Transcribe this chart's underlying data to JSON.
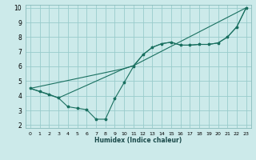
{
  "xlabel": "Humidex (Indice chaleur)",
  "bg_color": "#cceaea",
  "grid_color": "#99cccc",
  "line_color": "#1a7060",
  "xlim": [
    -0.5,
    23.5
  ],
  "ylim": [
    1.8,
    10.2
  ],
  "xticks": [
    0,
    1,
    2,
    3,
    4,
    5,
    6,
    7,
    8,
    9,
    10,
    11,
    12,
    13,
    14,
    15,
    16,
    17,
    18,
    19,
    20,
    21,
    22,
    23
  ],
  "yticks": [
    2,
    3,
    4,
    5,
    6,
    7,
    8,
    9,
    10
  ],
  "line1_x": [
    0,
    1,
    2,
    3,
    4,
    5,
    6,
    7,
    8,
    9,
    10,
    11,
    12,
    13,
    14,
    15,
    16,
    17,
    18,
    19,
    20,
    21,
    22,
    23
  ],
  "line1_y": [
    4.5,
    4.3,
    4.1,
    3.85,
    3.25,
    3.15,
    3.05,
    2.4,
    2.4,
    3.8,
    4.9,
    6.0,
    6.8,
    7.3,
    7.55,
    7.65,
    7.45,
    7.45,
    7.5,
    7.5,
    7.6,
    8.0,
    8.7,
    10.0
  ],
  "line2_x": [
    0,
    3,
    10,
    11,
    23
  ],
  "line2_y": [
    4.5,
    3.85,
    5.85,
    6.05,
    10.0
  ],
  "line3_x": [
    0,
    10,
    11,
    12,
    13,
    14,
    15,
    16,
    17,
    18,
    19,
    20,
    21,
    22,
    23
  ],
  "line3_y": [
    4.5,
    5.85,
    6.05,
    6.8,
    7.3,
    7.55,
    7.65,
    7.45,
    7.45,
    7.5,
    7.5,
    7.6,
    8.0,
    8.7,
    10.0
  ]
}
